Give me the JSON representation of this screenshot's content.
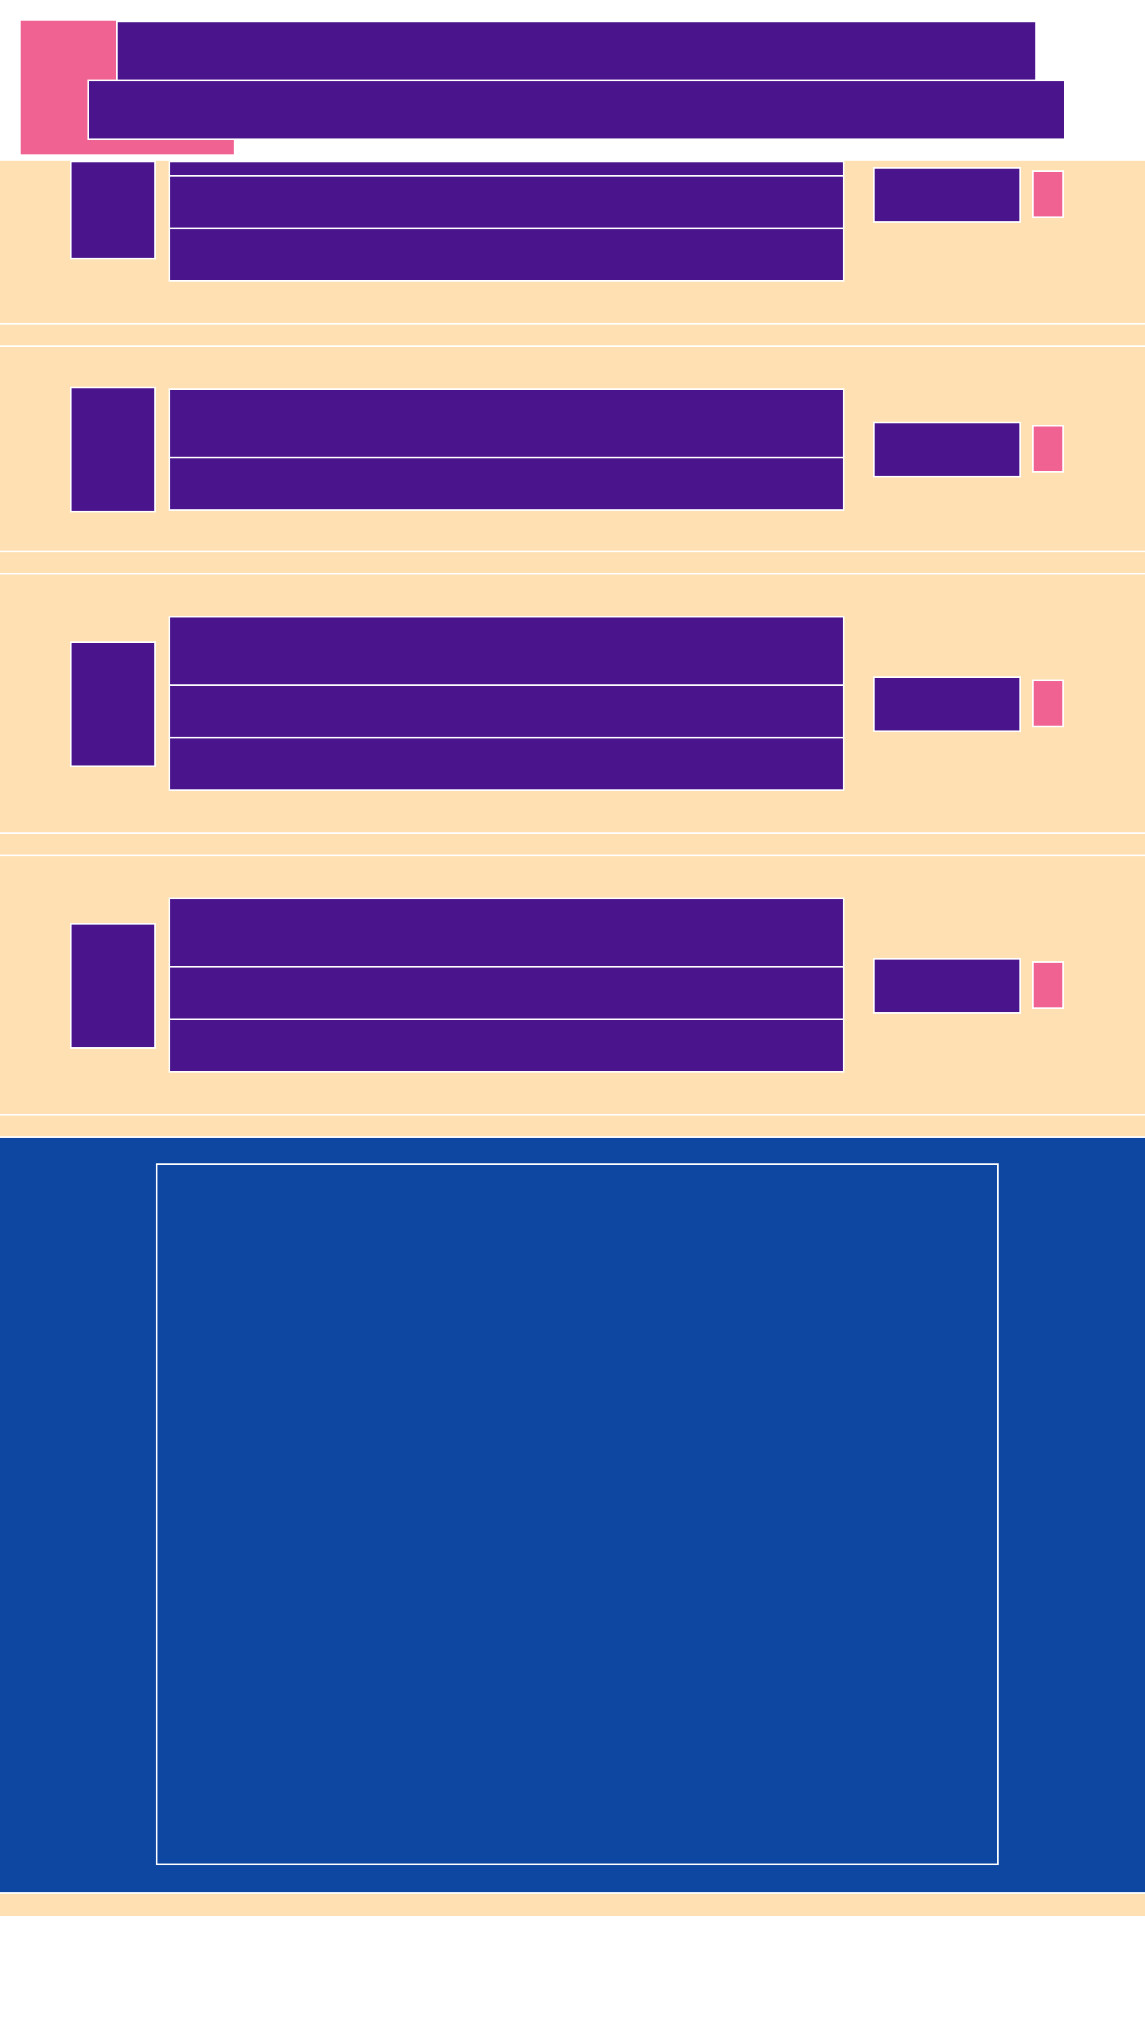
{
  "colors": {
    "pink": "#F06292",
    "purple": "#4A148C",
    "beige": "#FFE0B2",
    "blue": "#0D47A1",
    "white": "#FFFFFF"
  },
  "header": {
    "logo_icon": "logo-block",
    "title_line_1": "",
    "title_line_2": ""
  },
  "list_items": [
    {
      "thumbnail_icon": "thumbnail",
      "lines": [
        "",
        "",
        ""
      ],
      "action_label": "",
      "badge_icon": "badge"
    },
    {
      "thumbnail_icon": "thumbnail",
      "lines": [
        "",
        ""
      ],
      "action_label": "",
      "badge_icon": "badge"
    },
    {
      "thumbnail_icon": "thumbnail",
      "lines": [
        "",
        "",
        ""
      ],
      "action_label": "",
      "badge_icon": "badge"
    },
    {
      "thumbnail_icon": "thumbnail",
      "lines": [
        "",
        "",
        ""
      ],
      "action_label": "",
      "badge_icon": "badge"
    }
  ],
  "media_panel": {
    "caption": ""
  }
}
